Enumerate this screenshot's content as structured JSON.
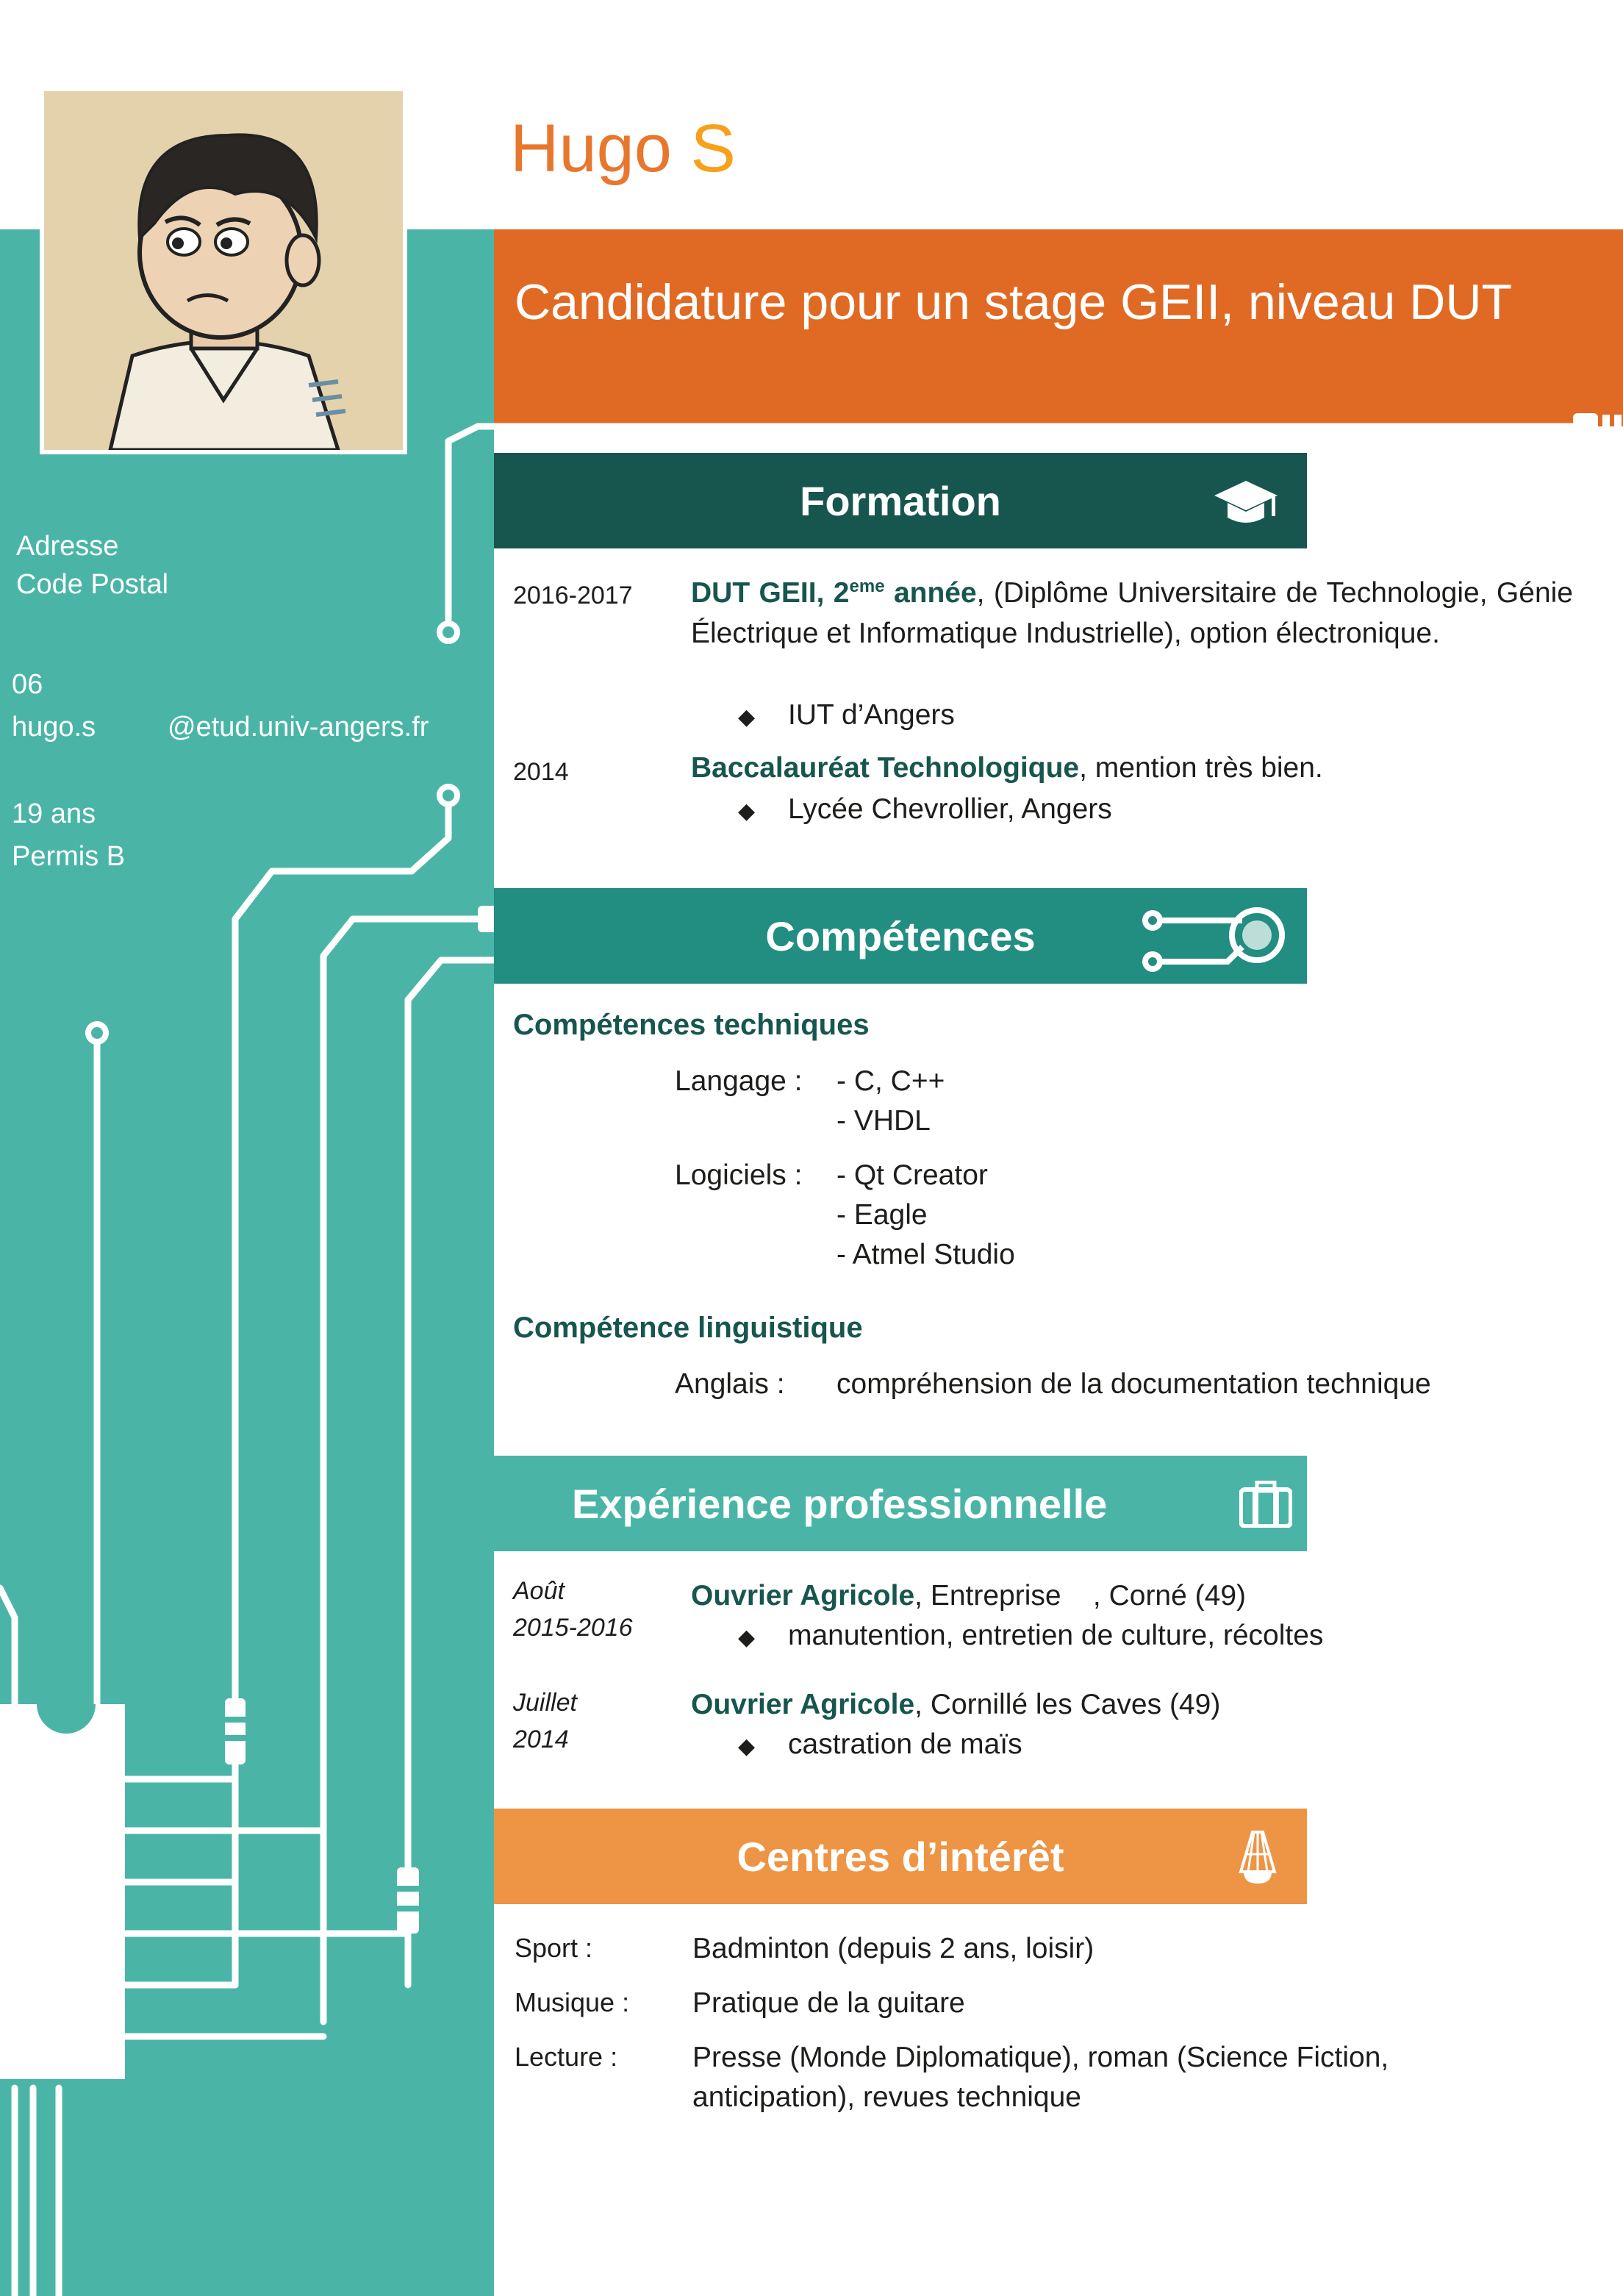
{
  "header": {
    "first_name": "Hugo",
    "last_initial": "S",
    "headline": "Candidature pour un stage GEII, niveau DUT"
  },
  "contact": {
    "address": "Adresse",
    "postal_code": "Code Postal",
    "phone": "06",
    "email_user": "hugo.s",
    "email_domain": "@etud.univ-angers.fr",
    "age": "19 ans",
    "license": "Permis B"
  },
  "formation": {
    "title": "Formation",
    "items": [
      {
        "date": "2016-2017",
        "degree_main": "DUT GEII, 2",
        "degree_sup": "eme",
        "degree_tail": " année",
        "description_1": ", (Diplôme Universitaire de Technologie, Génie Électrique et Informatique Industrielle), option électronique.",
        "place": "IUT d’Angers"
      },
      {
        "date": "2014",
        "degree": "Baccalauréat Technologique",
        "description": ", mention très bien.",
        "place": "Lycée Chevrollier, Angers"
      }
    ]
  },
  "competences": {
    "title": "Compétences",
    "tech_title": "Compétences techniques",
    "langage_label": "Langage :",
    "langage_items": [
      "- C, C++",
      "- VHDL"
    ],
    "logiciels_label": "Logiciels :",
    "logiciels_items": [
      "- Qt Creator",
      "- Eagle",
      "- Atmel Studio"
    ],
    "ling_title": "Compétence linguistique",
    "anglais_label": "Anglais :",
    "anglais_value": "compréhension de la documentation technique"
  },
  "experience": {
    "title": "Expérience professionnelle",
    "items": [
      {
        "date_1": "Août",
        "date_2": "2015-2016",
        "role": "Ouvrier Agricole",
        "place": ", Entreprise    , Corné (49)",
        "detail": "manutention, entretien de culture, récoltes"
      },
      {
        "date_1": "Juillet",
        "date_2": "2014",
        "role": "Ouvrier Agricole",
        "place": ", Cornillé les Caves (49)",
        "detail": "castration de maïs"
      }
    ]
  },
  "interets": {
    "title": "Centres d’intérêt",
    "items": [
      {
        "label": "Sport :",
        "value": "Badminton (depuis 2 ans, loisir)"
      },
      {
        "label": "Musique :",
        "value": "Pratique de la guitare"
      },
      {
        "label": "Lecture :",
        "value_1": "Presse (Monde Diplomatique), roman (Science Fiction,",
        "value_2": "anticipation), revues technique"
      }
    ]
  },
  "colors": {
    "teal": "#4ab5a7",
    "dark_green": "#17564e",
    "section_teal": "#228d81",
    "orange": "#e06a24",
    "light_orange": "#ee9445"
  }
}
